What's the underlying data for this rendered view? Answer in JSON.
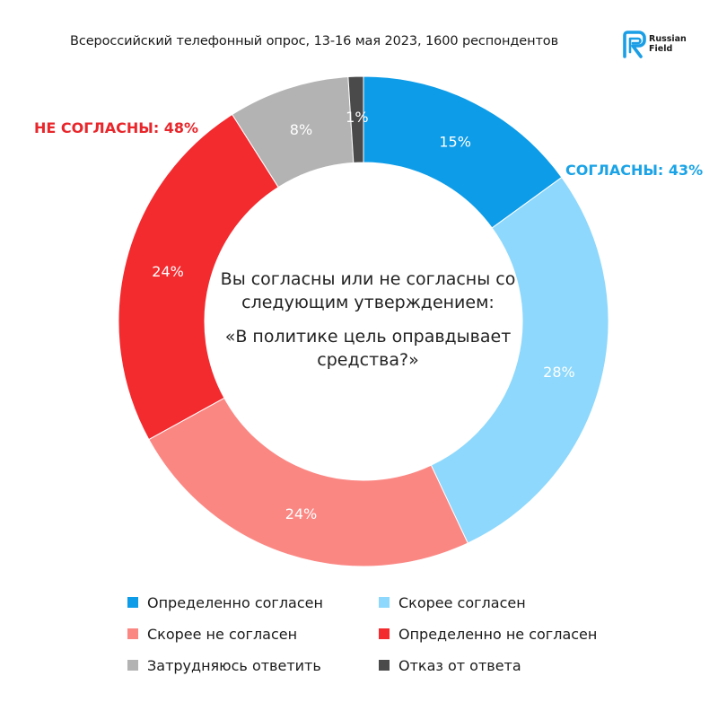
{
  "header": {
    "subtitle": "Всероссийский телефонный опрос, 13-16 мая 2023, 1600 респондентов",
    "logo_text": "Russian\nField",
    "logo_color": "#1a9ee5"
  },
  "center": {
    "question": "Вы согласны или не согласны со следующим утверждением:",
    "statement": "«В политике цель оправдывает средства?»"
  },
  "group_labels": {
    "agree": {
      "text": "СОГЛАСНЫ: 43%",
      "color": "#1aa3e6"
    },
    "disagree": {
      "text": "НЕ СОГЛАСНЫ: 48%",
      "color": "#e8262b"
    }
  },
  "chart_data": {
    "type": "pie",
    "donut": true,
    "start": "top, clockwise",
    "slices": [
      {
        "name": "Определенно согласен",
        "value": 15,
        "label": "15%",
        "color": "#0d9ce8",
        "label_color": "#ffffff"
      },
      {
        "name": "Скорее согласен",
        "value": 28,
        "label": "28%",
        "color": "#8dd8fc",
        "label_color": "#ffffff"
      },
      {
        "name": "Скорее не согласен",
        "value": 24,
        "label": "24%",
        "color": "#fb8783",
        "label_color": "#ffffff"
      },
      {
        "name": "Определенно не согласен",
        "value": 24,
        "label": "24%",
        "color": "#f32a2e",
        "label_color": "#ffffff"
      },
      {
        "name": "Затрудняюсь ответить",
        "value": 8,
        "label": "8%",
        "color": "#b3b3b3",
        "label_color": "#ffffff"
      },
      {
        "name": "Отказ от ответа",
        "value": 1,
        "label": "1%",
        "color": "#4a4a4a",
        "label_color": "#ffffff"
      }
    ]
  },
  "legend": [
    {
      "label": "Определенно согласен",
      "color": "#0d9ce8"
    },
    {
      "label": "Скорее согласен",
      "color": "#8dd8fc"
    },
    {
      "label": "Скорее не согласен",
      "color": "#fb8783"
    },
    {
      "label": "Определенно не согласен",
      "color": "#f32a2e"
    },
    {
      "label": "Затрудняюсь ответить",
      "color": "#b3b3b3"
    },
    {
      "label": "Отказ от ответа",
      "color": "#4a4a4a"
    }
  ]
}
